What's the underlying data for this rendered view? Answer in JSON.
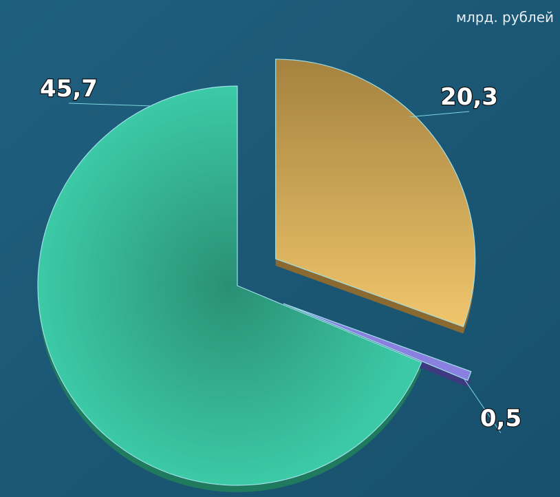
{
  "chart_data": {
    "type": "pie",
    "subtitle": "млрд. рублей",
    "values": [
      20.3,
      0.5,
      45.7
    ],
    "value_labels": [
      "20,3",
      "0,5",
      "45,7"
    ],
    "colors": [
      "#d9b05a",
      "#8a80e0",
      "#38c4a0"
    ]
  }
}
